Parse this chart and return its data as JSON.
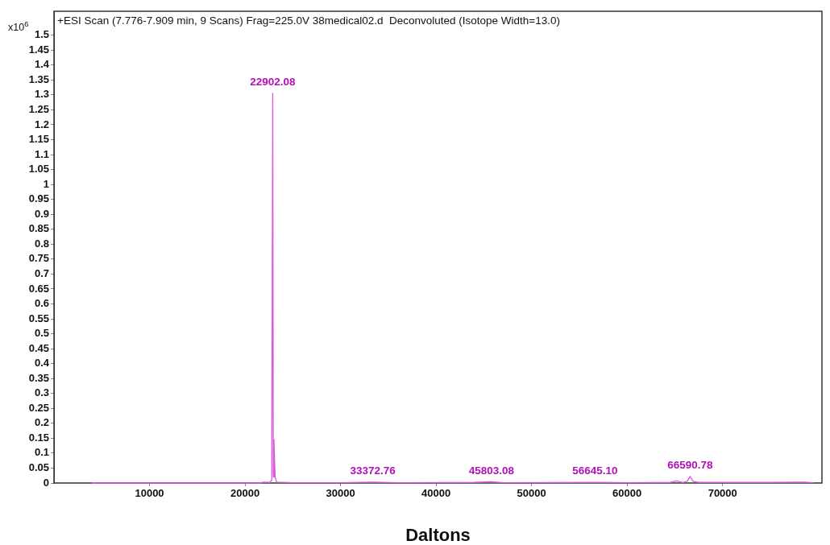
{
  "chart_data": {
    "type": "line",
    "title": "+ESI Scan (7.776-7.909 min, 9 Scans) Frag=225.0V 38medical02.d  Deconvoluted (Isotope Width=13.0)",
    "xlabel": "Daltons",
    "ylabel": "x10$^{6}$",
    "x": [
      4000,
      21500,
      22000,
      22600,
      22800,
      22902,
      22960,
      23030,
      23080,
      23150,
      23300,
      25000,
      30000,
      33372,
      36000,
      44000,
      45803,
      47000,
      56645,
      60000,
      64500,
      65200,
      65800,
      66300,
      66590,
      66900,
      67500,
      75000,
      78500,
      79500
    ],
    "series": [
      {
        "color": "#dd55dd",
        "values": [
          0,
          0,
          0.003,
          0.002,
          0.01,
          1.305,
          0.02,
          0.145,
          0.085,
          0.02,
          0.003,
          0.001,
          0.001,
          0.003,
          0.001,
          0.002,
          0.004,
          0.001,
          0.002,
          0.001,
          0.002,
          0.007,
          0.002,
          0.006,
          0.022,
          0.006,
          0.002,
          0.002,
          0.003,
          0.001
        ]
      }
    ],
    "xlim": [
      0,
      80400
    ],
    "ylim": [
      0,
      1.58
    ],
    "xticks": [
      10000,
      20000,
      30000,
      40000,
      50000,
      60000,
      70000
    ],
    "yticks": [
      0,
      0.05,
      0.1,
      0.15,
      0.2,
      0.25,
      0.3,
      0.35,
      0.4,
      0.45,
      0.5,
      0.55,
      0.6,
      0.65,
      0.7,
      0.75,
      0.8,
      0.85,
      0.9,
      0.95,
      1,
      1.05,
      1.1,
      1.15,
      1.2,
      1.25,
      1.3,
      1.35,
      1.4,
      1.45,
      1.5
    ],
    "annotations": [
      {
        "text": "22902.08",
        "x": 22902,
        "y": 1.305
      },
      {
        "text": "33372.76",
        "x": 33372,
        "y": 0.003
      },
      {
        "text": "45803.08",
        "x": 45803,
        "y": 0.004
      },
      {
        "text": "56645.10",
        "x": 56645,
        "y": 0.002
      },
      {
        "text": "66590.78",
        "x": 66590,
        "y": 0.022
      }
    ],
    "grid": false,
    "marker": "none",
    "legend": false
  }
}
